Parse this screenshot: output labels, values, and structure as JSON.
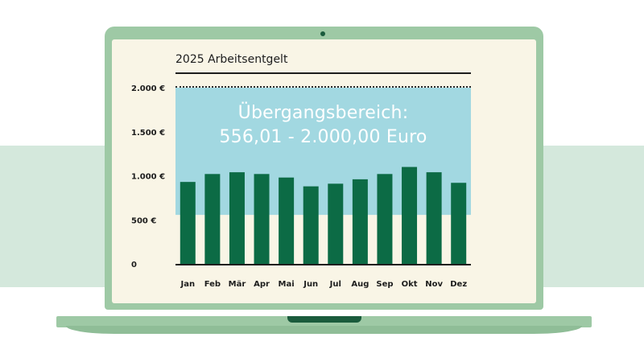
{
  "chart_data": {
    "type": "bar",
    "title": "2025 Arbeitsentgelt",
    "categories": [
      "Jan",
      "Feb",
      "Mär",
      "Apr",
      "Mai",
      "Jun",
      "Jul",
      "Aug",
      "Sep",
      "Okt",
      "Nov",
      "Dez"
    ],
    "values": [
      930,
      1020,
      1040,
      1020,
      980,
      880,
      910,
      960,
      1020,
      1100,
      1040,
      920
    ],
    "ylim": [
      0,
      2000
    ],
    "yticks": [
      {
        "value": 0,
        "label": "0"
      },
      {
        "value": 500,
        "label": "500 €"
      },
      {
        "value": 1000,
        "label": "1.000 €"
      },
      {
        "value": 1500,
        "label": "1.500 €"
      },
      {
        "value": 2000,
        "label": "2.000 €"
      }
    ],
    "band": {
      "from": 556.01,
      "to": 2000,
      "line1": "Übergangsbereich:",
      "line2": "556,01 - 2.000,00 Euro"
    },
    "colors": {
      "bar": "#0c6b45",
      "band": "#a2d8e1"
    }
  }
}
